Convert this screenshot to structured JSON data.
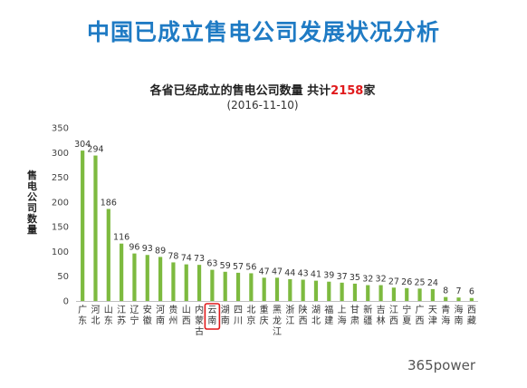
{
  "header": {
    "title": "中国已成立售电公司发展状况分析"
  },
  "watermark": {
    "text": "365power"
  },
  "colors": {
    "bar": "#7dba3f",
    "title": "#1f7bc4",
    "highlight_box": "#e0191b",
    "accent": "#e0191b"
  },
  "chart_data": {
    "type": "bar",
    "title_prefix": "各省已经成立的售电公司数量  共计",
    "title_total": "2158",
    "title_suffix": "家",
    "subtitle": "(2016-11-10)",
    "ylabel": "售电公司数量",
    "ylim": [
      0,
      350
    ],
    "yticks": [
      0,
      50,
      100,
      150,
      200,
      250,
      300,
      350
    ],
    "grid": false,
    "highlighted_category": "云南",
    "categories": [
      "广东",
      "河北",
      "山东",
      "江苏",
      "辽宁",
      "安徽",
      "河南",
      "贵州",
      "山西",
      "内蒙古",
      "云南",
      "湖南",
      "四川",
      "北京",
      "重庆",
      "黑龙江",
      "浙江",
      "陕西",
      "湖北",
      "福建",
      "上海",
      "甘肃",
      "新疆",
      "吉林",
      "江西",
      "宁夏",
      "广西",
      "天津",
      "青海",
      "海南",
      "西藏"
    ],
    "values": [
      304,
      294,
      186,
      116,
      96,
      93,
      89,
      78,
      74,
      73,
      63,
      59,
      57,
      56,
      47,
      47,
      44,
      43,
      41,
      39,
      37,
      35,
      32,
      32,
      27,
      26,
      25,
      24,
      8,
      7,
      6
    ]
  }
}
